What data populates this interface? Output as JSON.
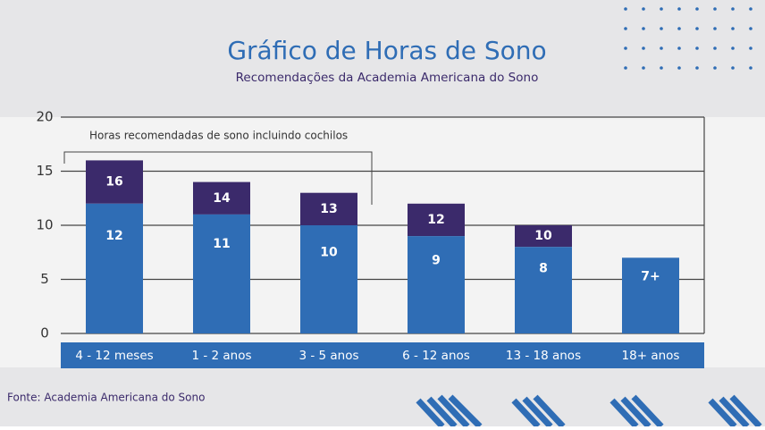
{
  "chart_data": {
    "type": "bar",
    "title": "Gráfico de Horas de Sono",
    "subtitle": "Recomendações da Academia Americana do Sono",
    "annotation": "Horas recomendadas de sono incluindo cochilos",
    "source": "Fonte: Academia Americana do Sono",
    "categories": [
      "4 - 12 meses",
      "1 - 2 anos",
      "3 - 5 anos",
      "6 - 12 anos",
      "13 - 18 anos",
      "18+ anos"
    ],
    "series": [
      {
        "color": "#2f6db5",
        "values": [
          12,
          11,
          10,
          9,
          8,
          7
        ],
        "value_labels": [
          "12",
          "11",
          "10",
          "9",
          "8",
          "7+"
        ]
      },
      {
        "color": "#3b2a6b",
        "values": [
          16,
          14,
          13,
          12,
          10,
          null
        ]
      }
    ],
    "ylim": [
      0,
      20
    ],
    "yticks": [
      0,
      5,
      10,
      15,
      20
    ],
    "grid": true
  }
}
